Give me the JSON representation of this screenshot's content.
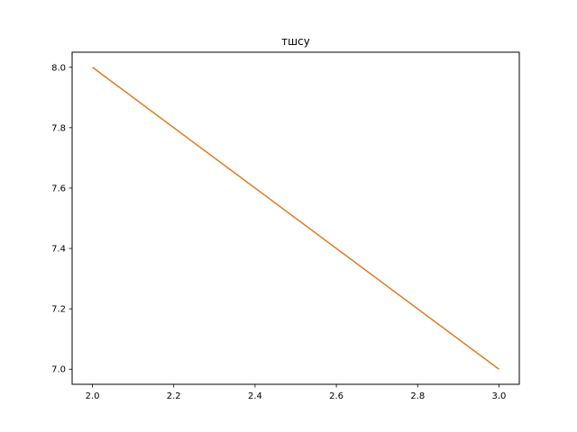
{
  "chart_data": {
    "type": "line",
    "title": "тшсу",
    "xlabel": "",
    "ylabel": "",
    "xlim": [
      1.95,
      3.05
    ],
    "ylim": [
      6.95,
      8.05
    ],
    "xticks": [
      2.0,
      2.2,
      2.4,
      2.6,
      2.8,
      3.0
    ],
    "xtick_labels": [
      "2.0",
      "2.2",
      "2.4",
      "2.6",
      "2.8",
      "3.0"
    ],
    "yticks": [
      7.0,
      7.2,
      7.4,
      7.6,
      7.8,
      8.0
    ],
    "ytick_labels": [
      "7.0",
      "7.2",
      "7.4",
      "7.6",
      "7.8",
      "8.0"
    ],
    "grid": false,
    "series": [
      {
        "x": [
          2.0,
          3.0
        ],
        "y": [
          8.0,
          7.0
        ],
        "color": "#e07b25"
      }
    ]
  }
}
